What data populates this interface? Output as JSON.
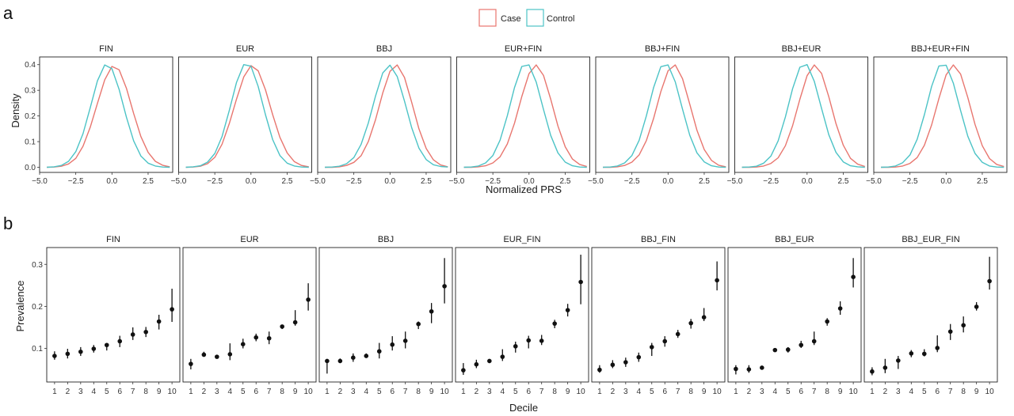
{
  "panel_a_label": "a",
  "panel_b_label": "b",
  "legend": {
    "items": [
      {
        "label": "Case",
        "color": "#e8766f"
      },
      {
        "label": "Control",
        "color": "#4cc3c6"
      }
    ]
  },
  "chart_data": [
    {
      "type": "line",
      "panel": "a",
      "facet_type": "density",
      "xlabel": "Normalized PRS",
      "ylabel": "Density",
      "xlim": [
        -5.0,
        4.2
      ],
      "ylim": [
        -0.02,
        0.43
      ],
      "xticks": [
        -5.0,
        -2.5,
        0.0,
        2.5
      ],
      "xtick_labels": [
        "−5.0",
        "−2.5",
        "0.0",
        "2.5"
      ],
      "yticks": [
        0.0,
        0.1,
        0.2,
        0.3,
        0.4
      ],
      "ytick_labels": [
        "0.0",
        "0.1",
        "0.2",
        "0.3",
        "0.4"
      ],
      "x": [
        -4.5,
        -4.0,
        -3.5,
        -3.0,
        -2.5,
        -2.0,
        -1.5,
        -1.0,
        -0.5,
        0.0,
        0.5,
        1.0,
        1.5,
        2.0,
        2.5,
        3.0,
        3.5,
        4.0
      ],
      "facets": [
        {
          "title": "FIN",
          "series": [
            {
              "name": "Case",
              "values": [
                0.0,
                0.001,
                0.004,
                0.013,
                0.035,
                0.082,
                0.156,
                0.249,
                0.341,
                0.393,
                0.38,
                0.308,
                0.21,
                0.12,
                0.058,
                0.023,
                0.008,
                0.002
              ]
            },
            {
              "name": "Control",
              "values": [
                0.0,
                0.002,
                0.007,
                0.023,
                0.061,
                0.131,
                0.232,
                0.337,
                0.399,
                0.384,
                0.303,
                0.195,
                0.103,
                0.044,
                0.016,
                0.005,
                0.001,
                0.0
              ]
            }
          ]
        },
        {
          "title": "EUR",
          "series": [
            {
              "name": "Case",
              "values": [
                0.0,
                0.001,
                0.004,
                0.014,
                0.039,
                0.09,
                0.17,
                0.265,
                0.352,
                0.396,
                0.376,
                0.302,
                0.205,
                0.117,
                0.056,
                0.022,
                0.007,
                0.002
              ]
            },
            {
              "name": "Control",
              "values": [
                0.0,
                0.002,
                0.006,
                0.02,
                0.054,
                0.12,
                0.221,
                0.33,
                0.4,
                0.394,
                0.315,
                0.205,
                0.108,
                0.046,
                0.016,
                0.005,
                0.001,
                0.0
              ]
            }
          ]
        },
        {
          "title": "BBJ",
          "series": [
            {
              "name": "Case",
              "values": [
                0.0,
                0.0,
                0.002,
                0.007,
                0.019,
                0.045,
                0.1,
                0.185,
                0.29,
                0.374,
                0.399,
                0.35,
                0.253,
                0.15,
                0.073,
                0.029,
                0.009,
                0.002
              ]
            },
            {
              "name": "Control",
              "values": [
                0.0,
                0.001,
                0.004,
                0.014,
                0.038,
                0.089,
                0.172,
                0.277,
                0.368,
                0.398,
                0.354,
                0.258,
                0.154,
                0.075,
                0.03,
                0.01,
                0.003,
                0.001
              ]
            }
          ]
        },
        {
          "title": "EUR+FIN",
          "series": [
            {
              "name": "Case",
              "values": [
                0.0,
                0.0,
                0.002,
                0.006,
                0.017,
                0.041,
                0.091,
                0.172,
                0.276,
                0.365,
                0.399,
                0.358,
                0.265,
                0.161,
                0.08,
                0.032,
                0.011,
                0.003
              ]
            },
            {
              "name": "Control",
              "values": [
                0.0,
                0.001,
                0.005,
                0.017,
                0.046,
                0.106,
                0.201,
                0.311,
                0.393,
                0.399,
                0.332,
                0.225,
                0.124,
                0.056,
                0.02,
                0.006,
                0.001,
                0.0
              ]
            }
          ]
        },
        {
          "title": "BBJ+FIN",
          "series": [
            {
              "name": "Case",
              "values": [
                0.0,
                0.0,
                0.002,
                0.007,
                0.02,
                0.048,
                0.104,
                0.19,
                0.295,
                0.376,
                0.399,
                0.345,
                0.246,
                0.144,
                0.069,
                0.027,
                0.008,
                0.002
              ]
            },
            {
              "name": "Control",
              "values": [
                0.0,
                0.001,
                0.005,
                0.017,
                0.046,
                0.105,
                0.2,
                0.31,
                0.392,
                0.399,
                0.333,
                0.226,
                0.125,
                0.056,
                0.021,
                0.006,
                0.001,
                0.0
              ]
            }
          ]
        },
        {
          "title": "BBJ+EUR",
          "series": [
            {
              "name": "Case",
              "values": [
                0.0,
                0.0,
                0.001,
                0.005,
                0.015,
                0.037,
                0.084,
                0.162,
                0.265,
                0.357,
                0.399,
                0.366,
                0.275,
                0.17,
                0.086,
                0.035,
                0.012,
                0.003
              ]
            },
            {
              "name": "Control",
              "values": [
                0.0,
                0.001,
                0.004,
                0.016,
                0.044,
                0.103,
                0.196,
                0.306,
                0.39,
                0.4,
                0.335,
                0.229,
                0.127,
                0.058,
                0.021,
                0.006,
                0.002,
                0.0
              ]
            }
          ]
        },
        {
          "title": "BBJ+EUR+FIN",
          "series": [
            {
              "name": "Case",
              "values": [
                0.0,
                0.0,
                0.001,
                0.005,
                0.015,
                0.038,
                0.086,
                0.165,
                0.268,
                0.36,
                0.399,
                0.363,
                0.272,
                0.167,
                0.084,
                0.034,
                0.011,
                0.003
              ]
            },
            {
              "name": "Control",
              "values": [
                0.0,
                0.001,
                0.005,
                0.018,
                0.048,
                0.109,
                0.205,
                0.315,
                0.395,
                0.398,
                0.328,
                0.221,
                0.121,
                0.054,
                0.019,
                0.005,
                0.001,
                0.0
              ]
            }
          ]
        }
      ]
    },
    {
      "type": "scatter",
      "panel": "b",
      "facet_type": "point-range",
      "xlabel": "Decile",
      "ylabel": "Prevalence",
      "xlim": [
        0.4,
        10.6
      ],
      "ylim": [
        0.02,
        0.34
      ],
      "xticks": [
        1,
        2,
        3,
        4,
        5,
        6,
        7,
        8,
        9,
        10
      ],
      "xtick_labels": [
        "1",
        "2",
        "3",
        "4",
        "5",
        "6",
        "7",
        "8",
        "9",
        "10"
      ],
      "yticks": [
        0.1,
        0.2,
        0.3
      ],
      "ytick_labels": [
        "0.1",
        "0.2",
        "0.3"
      ],
      "facets": [
        {
          "title": "FIN",
          "y": [
            0.082,
            0.087,
            0.092,
            0.099,
            0.108,
            0.117,
            0.133,
            0.139,
            0.164,
            0.193
          ],
          "lo": [
            0.073,
            0.076,
            0.082,
            0.09,
            0.095,
            0.103,
            0.12,
            0.127,
            0.145,
            0.163
          ],
          "hi": [
            0.093,
            0.099,
            0.103,
            0.108,
            0.112,
            0.13,
            0.15,
            0.151,
            0.18,
            0.242
          ]
        },
        {
          "title": "EUR",
          "y": [
            0.063,
            0.085,
            0.08,
            0.086,
            0.11,
            0.126,
            0.124,
            0.152,
            0.162,
            0.216
          ],
          "lo": [
            0.05,
            0.08,
            0.076,
            0.072,
            0.1,
            0.117,
            0.11,
            0.146,
            0.154,
            0.19
          ],
          "hi": [
            0.075,
            0.092,
            0.085,
            0.112,
            0.123,
            0.135,
            0.14,
            0.156,
            0.191,
            0.255
          ]
        },
        {
          "title": "BBJ",
          "y": [
            0.07,
            0.07,
            0.078,
            0.082,
            0.093,
            0.109,
            0.118,
            0.158,
            0.188,
            0.248
          ],
          "lo": [
            0.04,
            0.065,
            0.068,
            0.078,
            0.076,
            0.095,
            0.1,
            0.146,
            0.16,
            0.207
          ],
          "hi": [
            0.074,
            0.076,
            0.088,
            0.088,
            0.113,
            0.129,
            0.14,
            0.164,
            0.208,
            0.315
          ]
        },
        {
          "title": "EUR_FIN",
          "y": [
            0.048,
            0.062,
            0.07,
            0.08,
            0.105,
            0.119,
            0.118,
            0.159,
            0.191,
            0.258
          ],
          "lo": [
            0.037,
            0.053,
            0.065,
            0.07,
            0.09,
            0.1,
            0.108,
            0.148,
            0.176,
            0.205
          ],
          "hi": [
            0.065,
            0.073,
            0.073,
            0.098,
            0.116,
            0.13,
            0.132,
            0.168,
            0.206,
            0.323
          ]
        },
        {
          "title": "BBJ_FIN",
          "y": [
            0.049,
            0.061,
            0.067,
            0.079,
            0.103,
            0.117,
            0.134,
            0.16,
            0.174,
            0.262
          ],
          "lo": [
            0.042,
            0.053,
            0.056,
            0.068,
            0.082,
            0.104,
            0.125,
            0.147,
            0.165,
            0.238
          ],
          "hi": [
            0.06,
            0.072,
            0.078,
            0.09,
            0.113,
            0.129,
            0.144,
            0.17,
            0.196,
            0.307
          ]
        },
        {
          "title": "BBJ_EUR",
          "y": [
            0.051,
            0.05,
            0.054,
            0.096,
            0.097,
            0.108,
            0.117,
            0.164,
            0.195,
            0.27
          ],
          "lo": [
            0.038,
            0.042,
            0.05,
            0.093,
            0.09,
            0.101,
            0.108,
            0.154,
            0.18,
            0.245
          ],
          "hi": [
            0.06,
            0.06,
            0.058,
            0.098,
            0.103,
            0.118,
            0.14,
            0.172,
            0.212,
            0.315
          ]
        },
        {
          "title": "BBJ_EUR_FIN",
          "y": [
            0.045,
            0.054,
            0.071,
            0.088,
            0.087,
            0.101,
            0.14,
            0.155,
            0.199,
            0.26
          ],
          "lo": [
            0.036,
            0.041,
            0.051,
            0.079,
            0.081,
            0.091,
            0.12,
            0.138,
            0.19,
            0.24
          ],
          "hi": [
            0.055,
            0.075,
            0.082,
            0.096,
            0.098,
            0.131,
            0.158,
            0.176,
            0.21,
            0.318
          ]
        }
      ]
    }
  ]
}
